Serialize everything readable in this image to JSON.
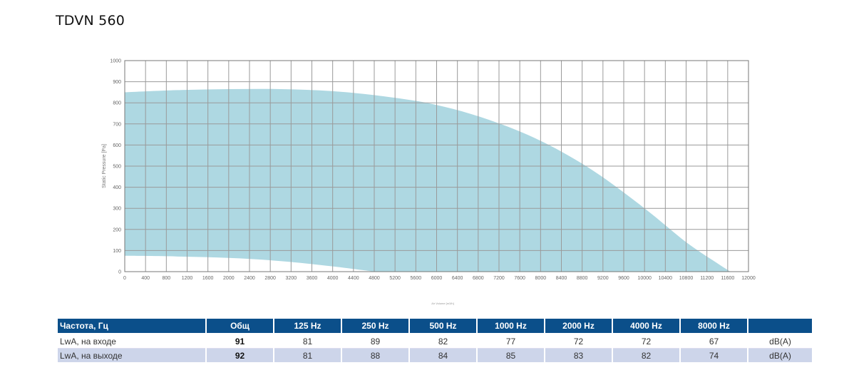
{
  "title": "TDVN 560",
  "chart_data": {
    "type": "area",
    "xlabel": "Air Volume [m3/h]",
    "ylabel": "Static Pressure [Pa]",
    "xlim": [
      0,
      12000
    ],
    "ylim": [
      0,
      1000
    ],
    "x_ticks": [
      0,
      400,
      800,
      1200,
      1600,
      2000,
      2400,
      2800,
      3200,
      3600,
      4000,
      4400,
      4800,
      5200,
      5600,
      6000,
      6400,
      6800,
      7200,
      7600,
      8000,
      8400,
      8800,
      9200,
      9600,
      10000,
      10400,
      10800,
      11200,
      11600,
      12000
    ],
    "y_ticks": [
      0,
      100,
      200,
      300,
      400,
      500,
      600,
      700,
      800,
      900,
      1000
    ],
    "grid": true,
    "color": "#aed8e2",
    "series": [
      {
        "x": [
          0,
          1000,
          2000,
          3000,
          4000,
          5000,
          6000,
          7000,
          8000,
          9000,
          10000,
          10800,
          11400,
          11650
        ],
        "y": [
          850,
          860,
          865,
          865,
          855,
          830,
          790,
          720,
          620,
          480,
          300,
          140,
          40,
          0
        ]
      },
      {
        "x": [
          0,
          1000,
          2000,
          3000,
          4000,
          4800
        ],
        "y": [
          75,
          72,
          65,
          50,
          25,
          0
        ]
      }
    ]
  },
  "table": {
    "headers": [
      "Частота, Гц",
      "Общ",
      "125 Hz",
      "250 Hz",
      "500 Hz",
      "1000 Hz",
      "2000 Hz",
      "4000 Hz",
      "8000 Hz",
      ""
    ],
    "rows": [
      {
        "label": "LwA, на входе",
        "total": "91",
        "values": [
          "81",
          "89",
          "82",
          "77",
          "72",
          "72",
          "67"
        ],
        "unit": "dB(A)"
      },
      {
        "label": "LwA, на выходе",
        "total": "92",
        "values": [
          "81",
          "88",
          "84",
          "85",
          "83",
          "82",
          "74"
        ],
        "unit": "dB(A)"
      }
    ]
  }
}
